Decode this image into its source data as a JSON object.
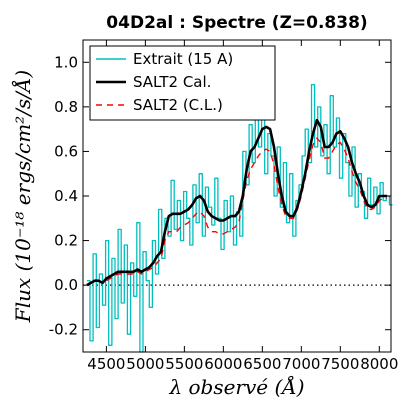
{
  "chart_data": {
    "type": "line",
    "title": "04D2al : Spectre (Z=0.838)",
    "xlabel": "λ observé (Å)",
    "ylabel": "Flux (10⁻¹⁸ ergs/cm²/s/Å)",
    "xlim": [
      4200,
      8150
    ],
    "ylim": [
      -0.3,
      1.1
    ],
    "x_ticks": [
      4500,
      5000,
      5500,
      6000,
      6500,
      7000,
      7500,
      8000
    ],
    "x_tick_labels": [
      "4500",
      "5000",
      "5500",
      "6000",
      "6500",
      "7000",
      "7500",
      "8000"
    ],
    "y_ticks": [
      -0.2,
      0.0,
      0.2,
      0.4,
      0.6,
      0.8,
      1.0
    ],
    "y_tick_labels": [
      "-0.2",
      "0.0",
      "0.2",
      "0.4",
      "0.6",
      "0.8",
      "1.0"
    ],
    "zero_line": {
      "y": 0.0,
      "style": "dotted"
    },
    "legend_position": "top-left",
    "series": [
      {
        "name": "Extrait (15 A)",
        "color": "#00bfbf",
        "style": "step",
        "x": [
          4250,
          4290,
          4330,
          4370,
          4410,
          4450,
          4490,
          4530,
          4570,
          4610,
          4650,
          4690,
          4730,
          4770,
          4810,
          4850,
          4890,
          4930,
          4970,
          5010,
          5050,
          5090,
          5130,
          5170,
          5210,
          5250,
          5290,
          5330,
          5370,
          5410,
          5450,
          5490,
          5530,
          5570,
          5610,
          5650,
          5690,
          5730,
          5770,
          5810,
          5850,
          5890,
          5930,
          5970,
          6010,
          6050,
          6090,
          6130,
          6170,
          6210,
          6250,
          6290,
          6330,
          6370,
          6410,
          6450,
          6490,
          6530,
          6570,
          6610,
          6650,
          6690,
          6730,
          6770,
          6810,
          6850,
          6890,
          6930,
          6970,
          7010,
          7050,
          7090,
          7130,
          7170,
          7210,
          7250,
          7290,
          7330,
          7370,
          7410,
          7450,
          7490,
          7530,
          7570,
          7610,
          7650,
          7690,
          7730,
          7770,
          7810,
          7850,
          7890,
          7930,
          7970,
          8010,
          8050,
          8090,
          8130
        ],
        "y": [
          0.02,
          -0.25,
          0.14,
          -0.19,
          0.05,
          -0.09,
          0.2,
          -0.27,
          0.12,
          -0.15,
          0.25,
          -0.08,
          0.18,
          -0.22,
          0.1,
          -0.05,
          0.28,
          -0.3,
          0.15,
          0.02,
          -0.1,
          0.2,
          0.05,
          0.34,
          0.12,
          0.3,
          0.22,
          0.47,
          0.25,
          0.38,
          0.2,
          0.42,
          0.3,
          0.18,
          0.45,
          0.28,
          0.5,
          0.22,
          0.44,
          0.35,
          0.27,
          0.48,
          0.3,
          0.16,
          0.38,
          0.24,
          0.4,
          0.18,
          0.33,
          0.22,
          0.6,
          0.45,
          0.72,
          0.55,
          0.77,
          0.62,
          0.8,
          0.5,
          0.68,
          0.58,
          0.4,
          0.62,
          0.35,
          0.55,
          0.28,
          0.5,
          0.22,
          0.38,
          0.45,
          0.58,
          0.7,
          0.55,
          0.9,
          0.62,
          0.8,
          0.58,
          0.72,
          0.5,
          0.85,
          0.62,
          0.75,
          0.48,
          0.68,
          0.55,
          0.4,
          0.62,
          0.35,
          0.5,
          0.42,
          0.3,
          0.48,
          0.36,
          0.44,
          0.32,
          0.46,
          0.38,
          0.4,
          0.36
        ]
      },
      {
        "name": "SALT2 Cal.",
        "color": "#000000",
        "style": "solid",
        "x": [
          4250,
          4300,
          4350,
          4400,
          4450,
          4500,
          4550,
          4600,
          4650,
          4700,
          4750,
          4800,
          4850,
          4900,
          4950,
          5000,
          5050,
          5100,
          5150,
          5200,
          5250,
          5300,
          5350,
          5400,
          5450,
          5500,
          5550,
          5600,
          5650,
          5700,
          5750,
          5800,
          5850,
          5900,
          5950,
          6000,
          6050,
          6100,
          6150,
          6200,
          6250,
          6300,
          6350,
          6400,
          6450,
          6500,
          6550,
          6600,
          6650,
          6700,
          6750,
          6800,
          6850,
          6900,
          6950,
          7000,
          7050,
          7100,
          7150,
          7200,
          7250,
          7300,
          7350,
          7400,
          7450,
          7500,
          7550,
          7600,
          7650,
          7700,
          7750,
          7800,
          7850,
          7900,
          7950,
          8000,
          8050,
          8100
        ],
        "y": [
          0.0,
          0.01,
          0.02,
          0.02,
          0.01,
          0.03,
          0.04,
          0.05,
          0.06,
          0.06,
          0.06,
          0.06,
          0.06,
          0.07,
          0.06,
          0.07,
          0.08,
          0.1,
          0.13,
          0.15,
          0.24,
          0.31,
          0.32,
          0.32,
          0.32,
          0.33,
          0.34,
          0.36,
          0.39,
          0.4,
          0.38,
          0.33,
          0.31,
          0.3,
          0.29,
          0.29,
          0.3,
          0.31,
          0.31,
          0.33,
          0.4,
          0.52,
          0.6,
          0.62,
          0.66,
          0.7,
          0.71,
          0.7,
          0.62,
          0.5,
          0.4,
          0.33,
          0.31,
          0.31,
          0.35,
          0.42,
          0.5,
          0.6,
          0.68,
          0.74,
          0.71,
          0.62,
          0.62,
          0.64,
          0.68,
          0.69,
          0.66,
          0.62,
          0.55,
          0.5,
          0.46,
          0.4,
          0.36,
          0.35,
          0.36,
          0.4,
          0.4,
          0.4
        ]
      },
      {
        "name": "SALT2 (C.L.)",
        "color": "#ff0000",
        "style": "dashed",
        "x": [
          4250,
          4300,
          4350,
          4400,
          4450,
          4500,
          4550,
          4600,
          4650,
          4700,
          4750,
          4800,
          4850,
          4900,
          4950,
          5000,
          5050,
          5100,
          5150,
          5200,
          5250,
          5300,
          5350,
          5400,
          5450,
          5500,
          5550,
          5600,
          5650,
          5700,
          5750,
          5800,
          5850,
          5900,
          5950,
          6000,
          6050,
          6100,
          6150,
          6200,
          6250,
          6300,
          6350,
          6400,
          6450,
          6500,
          6550,
          6600,
          6650,
          6700,
          6750,
          6800,
          6850,
          6900,
          6950,
          7000,
          7050,
          7100,
          7150,
          7200,
          7250,
          7300,
          7350,
          7400,
          7450,
          7500,
          7550,
          7600,
          7650,
          7700,
          7750,
          7800,
          7850,
          7900,
          7950,
          8000,
          8050,
          8100
        ],
        "y": [
          0.0,
          0.01,
          0.01,
          0.02,
          0.01,
          0.02,
          0.03,
          0.04,
          0.05,
          0.05,
          0.05,
          0.05,
          0.05,
          0.06,
          0.05,
          0.06,
          0.07,
          0.08,
          0.1,
          0.12,
          0.2,
          0.24,
          0.24,
          0.24,
          0.26,
          0.27,
          0.28,
          0.3,
          0.32,
          0.33,
          0.31,
          0.26,
          0.24,
          0.24,
          0.23,
          0.23,
          0.24,
          0.25,
          0.26,
          0.28,
          0.38,
          0.47,
          0.52,
          0.55,
          0.58,
          0.6,
          0.61,
          0.6,
          0.54,
          0.44,
          0.36,
          0.31,
          0.3,
          0.3,
          0.34,
          0.4,
          0.48,
          0.56,
          0.63,
          0.66,
          0.64,
          0.57,
          0.57,
          0.6,
          0.63,
          0.64,
          0.61,
          0.57,
          0.51,
          0.46,
          0.43,
          0.38,
          0.34,
          0.34,
          0.35,
          0.38,
          0.39,
          0.39
        ]
      }
    ]
  }
}
